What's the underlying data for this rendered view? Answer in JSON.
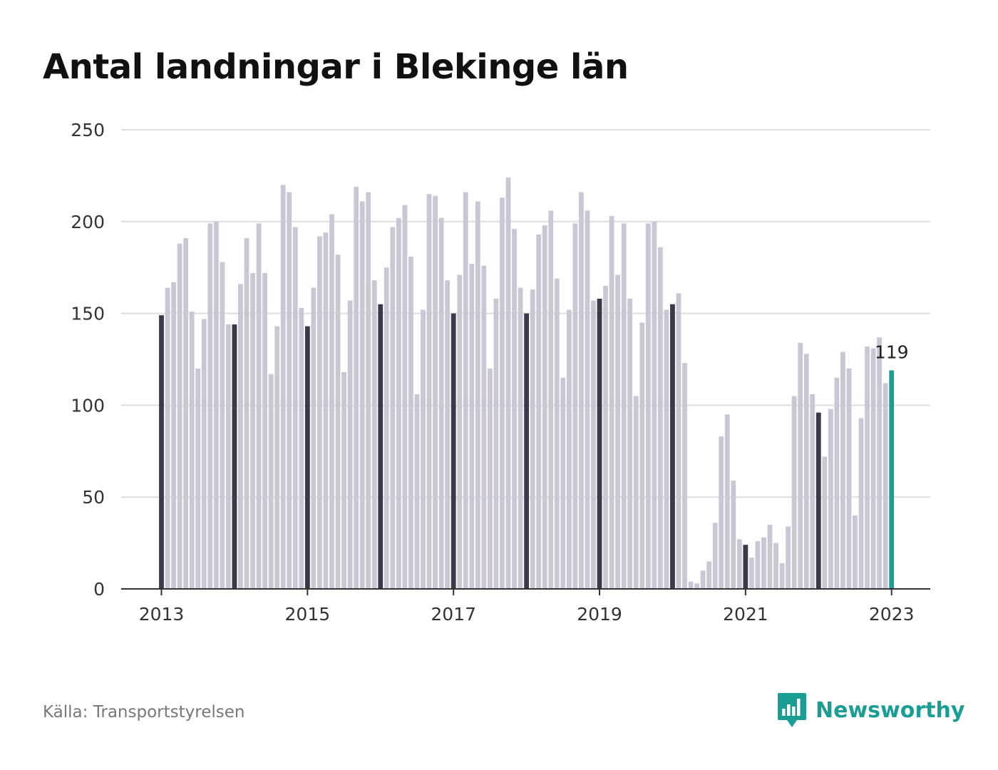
{
  "title": "Antal landningar i Blekinge län",
  "source": "Källa: Transportstyrelsen",
  "brand": {
    "name": "Newsworthy",
    "color": "#1a9e94",
    "icon": "newsworthy-bar-chart-icon"
  },
  "chart_data": {
    "type": "bar",
    "title": "Antal landningar i Blekinge län",
    "xlabel": "",
    "ylabel": "",
    "ylim": [
      0,
      250
    ],
    "yticks": [
      "0",
      "50",
      "100",
      "150",
      "200",
      "250"
    ],
    "xticks": [
      "2013",
      "2015",
      "2017",
      "2019",
      "2021",
      "2023"
    ],
    "grid": true,
    "colors": {
      "bar": "#c8c7d4",
      "january": "#3b3a4a",
      "latest": "#1a9e94",
      "grid": "#dddddd",
      "axis": "#333333"
    },
    "highlight": "January bars dark; latest month teal",
    "latest_label": "119",
    "series": [
      {
        "year": "2013",
        "values": [
          149,
          164,
          167,
          188,
          191,
          151,
          120,
          147,
          199,
          200,
          178,
          144
        ]
      },
      {
        "year": "2014",
        "values": [
          144,
          166,
          191,
          172,
          199,
          172,
          117,
          143,
          220,
          216,
          197,
          153
        ]
      },
      {
        "year": "2015",
        "values": [
          143,
          164,
          192,
          194,
          204,
          182,
          118,
          157,
          219,
          211,
          216,
          168
        ]
      },
      {
        "year": "2016",
        "values": [
          155,
          175,
          197,
          202,
          209,
          181,
          106,
          152,
          215,
          214,
          202,
          168
        ]
      },
      {
        "year": "2017",
        "values": [
          150,
          171,
          216,
          177,
          211,
          176,
          120,
          158,
          213,
          224,
          196,
          164
        ]
      },
      {
        "year": "2018",
        "values": [
          150,
          163,
          193,
          198,
          206,
          169,
          115,
          152,
          199,
          216,
          206,
          157
        ]
      },
      {
        "year": "2019",
        "values": [
          158,
          165,
          203,
          171,
          199,
          158,
          105,
          145,
          199,
          200,
          186,
          152
        ]
      },
      {
        "year": "2020",
        "values": [
          155,
          161,
          123,
          4,
          3,
          10,
          15,
          36,
          83,
          95,
          59,
          27
        ]
      },
      {
        "year": "2021",
        "values": [
          24,
          17,
          26,
          28,
          35,
          25,
          14,
          34,
          105,
          134,
          128,
          106
        ]
      },
      {
        "year": "2022",
        "values": [
          96,
          72,
          98,
          115,
          129,
          120,
          40,
          93,
          132,
          131,
          137,
          112
        ]
      },
      {
        "year": "2023",
        "values": [
          119
        ]
      }
    ]
  }
}
